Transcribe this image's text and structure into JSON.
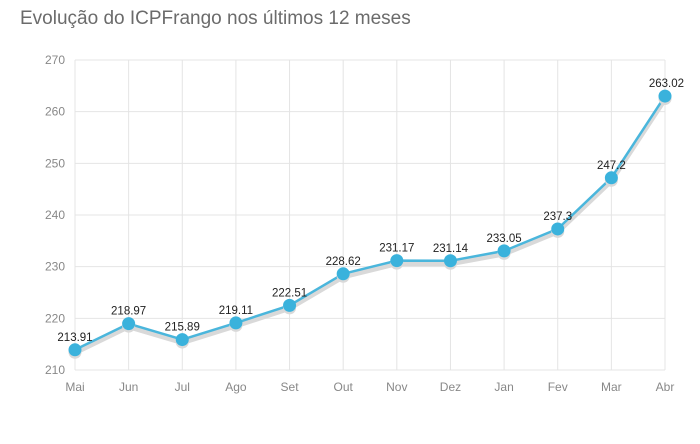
{
  "chart_data": {
    "type": "line",
    "title": "Evolução do ICPFrango nos últimos 12 meses",
    "xlabel": "",
    "ylabel": "",
    "categories": [
      "Mai",
      "Jun",
      "Jul",
      "Ago",
      "Set",
      "Out",
      "Nov",
      "Dez",
      "Jan",
      "Fev",
      "Mar",
      "Abr"
    ],
    "series": [
      {
        "values": [
          213.91,
          218.97,
          215.89,
          219.11,
          222.51,
          228.62,
          231.17,
          231.14,
          233.05,
          237.3,
          247.2,
          263.02
        ],
        "labels": [
          "213.91",
          "218.97",
          "215.89",
          "219.11",
          "222.51",
          "228.62",
          "231.17",
          "231.14",
          "233.05",
          "237.3",
          "247.2",
          "263.02"
        ]
      }
    ],
    "ylim": [
      210,
      270
    ],
    "yticks": [
      210,
      220,
      230,
      240,
      250,
      260,
      270
    ],
    "yticks_labels": [
      "210",
      "220",
      "230",
      "240",
      "250",
      "260",
      "270"
    ],
    "grid": true,
    "colors": {
      "line": "#4ab6dc",
      "marker": "#3ab2dc",
      "shadow": "#d9d9d9",
      "grid": "#e4e4e4"
    }
  }
}
